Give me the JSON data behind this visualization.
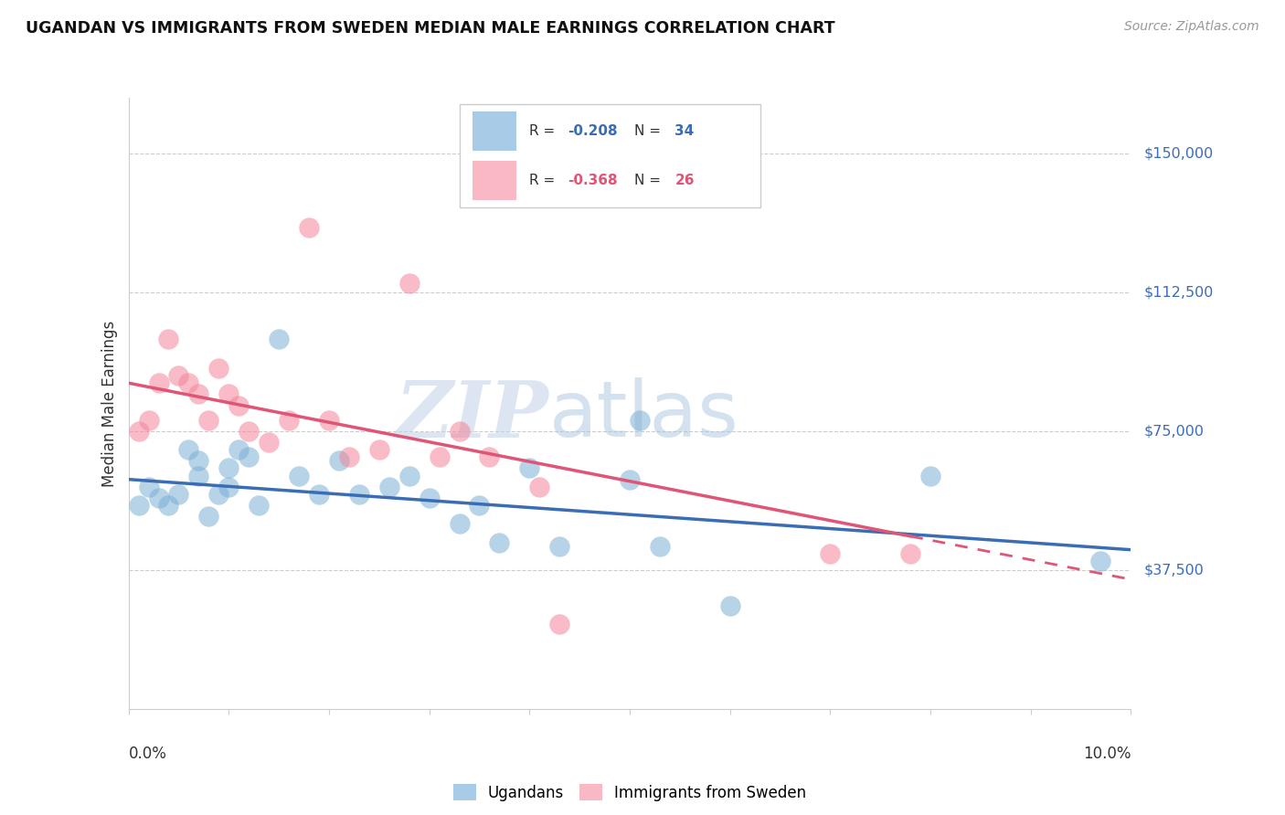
{
  "title": "UGANDAN VS IMMIGRANTS FROM SWEDEN MEDIAN MALE EARNINGS CORRELATION CHART",
  "source": "Source: ZipAtlas.com",
  "ylabel": "Median Male Earnings",
  "xlim": [
    0.0,
    0.1
  ],
  "ylim": [
    0,
    165000
  ],
  "legend_label1": "Ugandans",
  "legend_label2": "Immigrants from Sweden",
  "watermark_zip": "ZIP",
  "watermark_atlas": "atlas",
  "color_blue": "#7BAFD4",
  "color_pink": "#F4849A",
  "color_blue_legend": "#A8CBE8",
  "color_pink_legend": "#F9B8C4",
  "color_blue_line": "#3B6DB5",
  "color_pink_line": "#E05575",
  "ytick_positions": [
    37500,
    75000,
    112500,
    150000
  ],
  "ytick_labels": [
    "$37,500",
    "$75,000",
    "$112,500",
    "$150,000"
  ],
  "R_blue": "-0.208",
  "N_blue": "34",
  "R_pink": "-0.368",
  "N_pink": "26",
  "blue_x": [
    0.001,
    0.002,
    0.003,
    0.004,
    0.005,
    0.006,
    0.007,
    0.007,
    0.008,
    0.009,
    0.01,
    0.01,
    0.011,
    0.012,
    0.013,
    0.015,
    0.017,
    0.019,
    0.021,
    0.023,
    0.026,
    0.028,
    0.03,
    0.033,
    0.037,
    0.04,
    0.043,
    0.05,
    0.051,
    0.053,
    0.035,
    0.06,
    0.08,
    0.097
  ],
  "blue_y": [
    55000,
    60000,
    57000,
    55000,
    58000,
    70000,
    63000,
    67000,
    52000,
    58000,
    65000,
    60000,
    70000,
    68000,
    55000,
    100000,
    63000,
    58000,
    67000,
    58000,
    60000,
    63000,
    57000,
    50000,
    45000,
    65000,
    44000,
    62000,
    78000,
    44000,
    55000,
    28000,
    63000,
    40000
  ],
  "pink_x": [
    0.001,
    0.002,
    0.003,
    0.004,
    0.005,
    0.006,
    0.007,
    0.008,
    0.009,
    0.01,
    0.011,
    0.012,
    0.014,
    0.016,
    0.018,
    0.02,
    0.022,
    0.025,
    0.028,
    0.031,
    0.033,
    0.036,
    0.041,
    0.043,
    0.07,
    0.078
  ],
  "pink_y": [
    75000,
    78000,
    88000,
    100000,
    90000,
    88000,
    85000,
    78000,
    92000,
    85000,
    82000,
    75000,
    72000,
    78000,
    130000,
    78000,
    68000,
    70000,
    115000,
    68000,
    75000,
    68000,
    60000,
    23000,
    42000,
    42000
  ]
}
